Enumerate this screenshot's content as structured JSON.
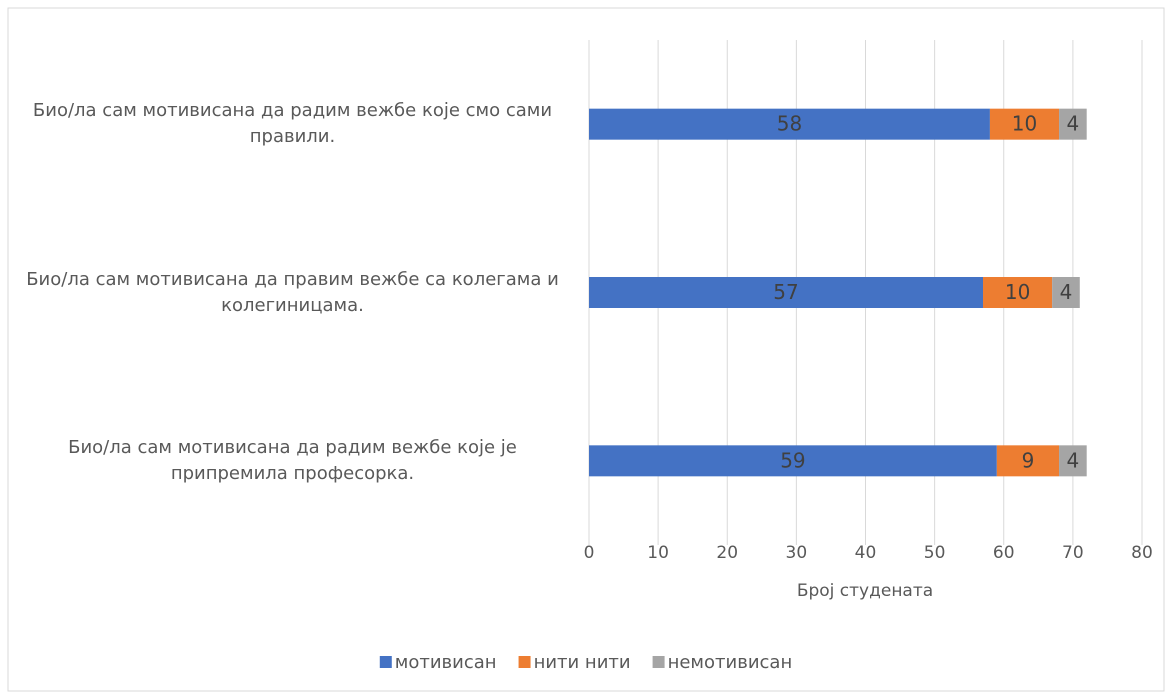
{
  "chart_data": {
    "type": "stacked_barh",
    "categories": [
      "Био/ла сам мотивисана да радим вежбе које смо сами правили.",
      "Био/ла сам мотивисана да правим вежбе са колегама и колегиницама.",
      "Био/ла сам мотивисана да радим вежбе које је припремила професорка."
    ],
    "series": [
      {
        "name": "мотивисан",
        "color": "#4472c4",
        "values": [
          58,
          57,
          59
        ]
      },
      {
        "name": "нити нити",
        "color": "#ed7d31",
        "values": [
          10,
          10,
          9
        ]
      },
      {
        "name": "немотивисан",
        "color": "#a5a5a5",
        "values": [
          4,
          4,
          4
        ]
      }
    ],
    "xlabel": "Број студената",
    "xlim": [
      0,
      80
    ],
    "xticks": [
      0,
      10,
      20,
      30,
      40,
      50,
      60,
      70,
      80
    ],
    "grid": true,
    "legend": "bottom"
  }
}
